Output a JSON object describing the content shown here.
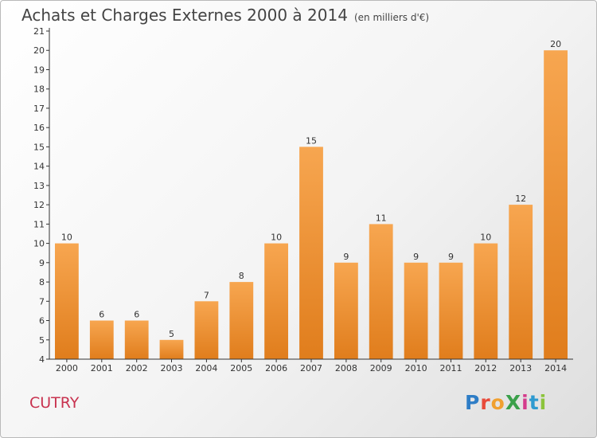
{
  "title": "Achats et Charges Externes 2000 à 2014",
  "unit": "(en milliers d'€)",
  "place": "CUTRY",
  "logo": {
    "text": "ProXiti",
    "letters": [
      {
        "ch": "P",
        "color": "#2e7dc6"
      },
      {
        "ch": "r",
        "color": "#e84a3a"
      },
      {
        "ch": "o",
        "color": "#f0a030"
      },
      {
        "ch": "X",
        "color": "#3aa04a"
      },
      {
        "ch": "i",
        "color": "#d43c8c"
      },
      {
        "ch": "t",
        "color": "#2e9ad0"
      },
      {
        "ch": "i",
        "color": "#8cc43c"
      }
    ]
  },
  "colors": {
    "bar_light": "#f7a650",
    "bar_dark": "#e07d1c",
    "axis": "#333333"
  },
  "chart_data": {
    "type": "bar",
    "title": "Achats et Charges Externes 2000 à 2014",
    "categories": [
      "2000",
      "2001",
      "2002",
      "2003",
      "2004",
      "2005",
      "2006",
      "2007",
      "2008",
      "2009",
      "2010",
      "2011",
      "2012",
      "2013",
      "2014"
    ],
    "values": [
      10,
      6,
      6,
      5,
      7,
      8,
      10,
      15,
      9,
      11,
      9,
      9,
      10,
      12,
      20
    ],
    "ylim": [
      4,
      21
    ],
    "yticks": [
      4,
      5,
      6,
      7,
      8,
      9,
      10,
      11,
      12,
      13,
      14,
      15,
      16,
      17,
      18,
      19,
      20,
      21
    ],
    "grid": false,
    "data_labels": true
  }
}
